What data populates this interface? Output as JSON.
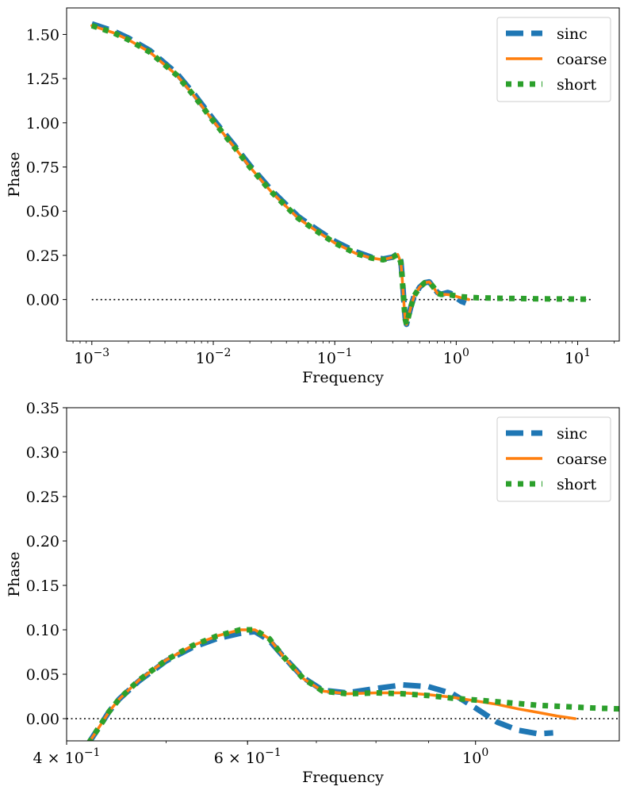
{
  "chart_data": [
    {
      "type": "line",
      "title": "",
      "xlabel": "Frequency",
      "ylabel": "Phase",
      "xscale": "log",
      "xlim": [
        0.00062,
        22
      ],
      "ylim": [
        -0.235,
        1.65
      ],
      "x_ticks": [
        {
          "value": 0.001,
          "base": "10",
          "exp": "−3"
        },
        {
          "value": 0.01,
          "base": "10",
          "exp": "−2"
        },
        {
          "value": 0.1,
          "base": "10",
          "exp": "−1"
        },
        {
          "value": 1,
          "base": "10",
          "exp": "0"
        },
        {
          "value": 10,
          "base": "10",
          "exp": "1"
        }
      ],
      "y_ticks": [
        0.0,
        0.25,
        0.5,
        0.75,
        1.0,
        1.25,
        1.5
      ],
      "y_tick_labels": [
        "0.00",
        "0.25",
        "0.50",
        "0.75",
        "1.00",
        "1.25",
        "1.50"
      ],
      "reference_line": {
        "y": 0,
        "x_range": [
          0.001,
          13
        ],
        "style": "dotted",
        "color": "#000000"
      },
      "legend": {
        "position": "top-right",
        "entries": [
          "sinc",
          "coarse",
          "short"
        ]
      },
      "series": [
        {
          "name": "sinc",
          "color": "#1f77b4",
          "style": "dashed",
          "x": [
            0.001,
            0.0015,
            0.002,
            0.003,
            0.005,
            0.007,
            0.01,
            0.015,
            0.02,
            0.03,
            0.05,
            0.07,
            0.1,
            0.15,
            0.2,
            0.25,
            0.3,
            0.33,
            0.35,
            0.36,
            0.37,
            0.38,
            0.39,
            0.4,
            0.42,
            0.45,
            0.5,
            0.55,
            0.6,
            0.65,
            0.7,
            0.75,
            0.8,
            0.85,
            0.9,
            1.0,
            1.1,
            1.2
          ],
          "y": [
            1.56,
            1.52,
            1.48,
            1.41,
            1.28,
            1.16,
            1.02,
            0.87,
            0.76,
            0.62,
            0.47,
            0.4,
            0.33,
            0.27,
            0.24,
            0.23,
            0.24,
            0.26,
            0.22,
            0.12,
            0.0,
            -0.1,
            -0.14,
            -0.11,
            -0.05,
            0.02,
            0.07,
            0.095,
            0.1,
            0.07,
            0.04,
            0.03,
            0.035,
            0.04,
            0.035,
            0.01,
            -0.01,
            -0.02
          ]
        },
        {
          "name": "coarse",
          "color": "#ff7f0e",
          "style": "solid",
          "x": [
            0.001,
            0.0015,
            0.002,
            0.003,
            0.005,
            0.007,
            0.01,
            0.015,
            0.02,
            0.03,
            0.05,
            0.07,
            0.1,
            0.15,
            0.2,
            0.25,
            0.3,
            0.33,
            0.35,
            0.36,
            0.37,
            0.38,
            0.39,
            0.4,
            0.42,
            0.45,
            0.5,
            0.55,
            0.6,
            0.65,
            0.7,
            0.75,
            0.8,
            0.85,
            0.9,
            1.0,
            1.1,
            1.2,
            1.27
          ],
          "y": [
            1.55,
            1.51,
            1.47,
            1.4,
            1.27,
            1.15,
            1.01,
            0.86,
            0.75,
            0.61,
            0.46,
            0.39,
            0.32,
            0.26,
            0.235,
            0.225,
            0.24,
            0.255,
            0.21,
            0.11,
            -0.01,
            -0.11,
            -0.14,
            -0.11,
            -0.05,
            0.02,
            0.07,
            0.095,
            0.1,
            0.07,
            0.035,
            0.029,
            0.029,
            0.028,
            0.026,
            0.018,
            0.01,
            0.004,
            0.0
          ]
        },
        {
          "name": "short",
          "color": "#2ca02c",
          "style": "dotted",
          "x": [
            0.001,
            0.0015,
            0.002,
            0.003,
            0.005,
            0.007,
            0.01,
            0.015,
            0.02,
            0.03,
            0.05,
            0.07,
            0.1,
            0.15,
            0.2,
            0.25,
            0.3,
            0.33,
            0.35,
            0.36,
            0.37,
            0.38,
            0.39,
            0.4,
            0.42,
            0.45,
            0.5,
            0.55,
            0.6,
            0.65,
            0.7,
            0.75,
            0.8,
            0.85,
            0.9,
            1.0,
            1.1,
            1.2,
            1.5,
            2,
            3,
            5,
            8,
            12
          ],
          "y": [
            1.55,
            1.51,
            1.47,
            1.4,
            1.27,
            1.15,
            1.01,
            0.86,
            0.75,
            0.61,
            0.46,
            0.39,
            0.32,
            0.26,
            0.235,
            0.225,
            0.24,
            0.255,
            0.21,
            0.11,
            -0.01,
            -0.11,
            -0.14,
            -0.11,
            -0.05,
            0.02,
            0.07,
            0.095,
            0.1,
            0.07,
            0.035,
            0.029,
            0.029,
            0.028,
            0.026,
            0.02,
            0.016,
            0.014,
            0.01,
            0.008,
            0.006,
            0.004,
            0.003,
            0.002
          ]
        }
      ]
    },
    {
      "type": "line",
      "title": "",
      "xlabel": "Frequency",
      "ylabel": "Phase",
      "xscale": "log",
      "xlim": [
        0.4,
        1.38
      ],
      "ylim": [
        -0.025,
        0.35
      ],
      "x_ticks": [
        {
          "value": 0.4,
          "mant": "4",
          "base": "10",
          "exp": "−1"
        },
        {
          "value": 0.6,
          "mant": "6",
          "base": "10",
          "exp": "−1"
        },
        {
          "value": 1,
          "mant": "",
          "base": "10",
          "exp": "0"
        }
      ],
      "y_ticks": [
        0.0,
        0.05,
        0.1,
        0.15,
        0.2,
        0.25,
        0.3,
        0.35
      ],
      "y_tick_labels": [
        "0.00",
        "0.05",
        "0.10",
        "0.15",
        "0.20",
        "0.25",
        "0.30",
        "0.35"
      ],
      "reference_line": {
        "y": 0,
        "x_range": [
          0.4,
          1.38
        ],
        "style": "dotted",
        "color": "#000000"
      },
      "legend": {
        "position": "top-right",
        "entries": [
          "sinc",
          "coarse",
          "short"
        ]
      },
      "series": [
        {
          "name": "sinc",
          "color": "#1f77b4",
          "style": "dashed",
          "x": [
            0.42,
            0.43,
            0.44,
            0.45,
            0.47,
            0.5,
            0.53,
            0.56,
            0.59,
            0.61,
            0.63,
            0.65,
            0.68,
            0.71,
            0.75,
            0.8,
            0.85,
            0.9,
            0.95,
            1.0,
            1.05,
            1.1,
            1.15,
            1.19
          ],
          "y": [
            -0.028,
            -0.01,
            0.008,
            0.022,
            0.042,
            0.065,
            0.08,
            0.09,
            0.096,
            0.098,
            0.088,
            0.07,
            0.046,
            0.032,
            0.029,
            0.034,
            0.038,
            0.036,
            0.028,
            0.012,
            -0.004,
            -0.013,
            -0.017,
            -0.016
          ]
        },
        {
          "name": "coarse",
          "color": "#ff7f0e",
          "style": "solid",
          "x": [
            0.42,
            0.43,
            0.44,
            0.45,
            0.47,
            0.5,
            0.53,
            0.56,
            0.59,
            0.61,
            0.63,
            0.65,
            0.68,
            0.71,
            0.75,
            0.8,
            0.85,
            0.9,
            0.95,
            1.0,
            1.05,
            1.1,
            1.15,
            1.2,
            1.25
          ],
          "y": [
            -0.028,
            -0.01,
            0.008,
            0.022,
            0.043,
            0.066,
            0.082,
            0.093,
            0.1,
            0.1,
            0.09,
            0.07,
            0.045,
            0.031,
            0.028,
            0.029,
            0.029,
            0.027,
            0.024,
            0.02,
            0.016,
            0.011,
            0.007,
            0.003,
            0.0
          ]
        },
        {
          "name": "short",
          "color": "#2ca02c",
          "style": "dotted",
          "x": [
            0.42,
            0.43,
            0.44,
            0.45,
            0.47,
            0.5,
            0.53,
            0.56,
            0.59,
            0.61,
            0.63,
            0.65,
            0.68,
            0.71,
            0.75,
            0.8,
            0.85,
            0.9,
            0.95,
            1.0,
            1.05,
            1.1,
            1.15,
            1.2,
            1.25,
            1.3,
            1.38
          ],
          "y": [
            -0.028,
            -0.01,
            0.008,
            0.022,
            0.043,
            0.066,
            0.082,
            0.093,
            0.1,
            0.1,
            0.09,
            0.07,
            0.045,
            0.031,
            0.028,
            0.029,
            0.028,
            0.026,
            0.023,
            0.021,
            0.019,
            0.017,
            0.015,
            0.014,
            0.013,
            0.012,
            0.011
          ]
        }
      ]
    }
  ]
}
